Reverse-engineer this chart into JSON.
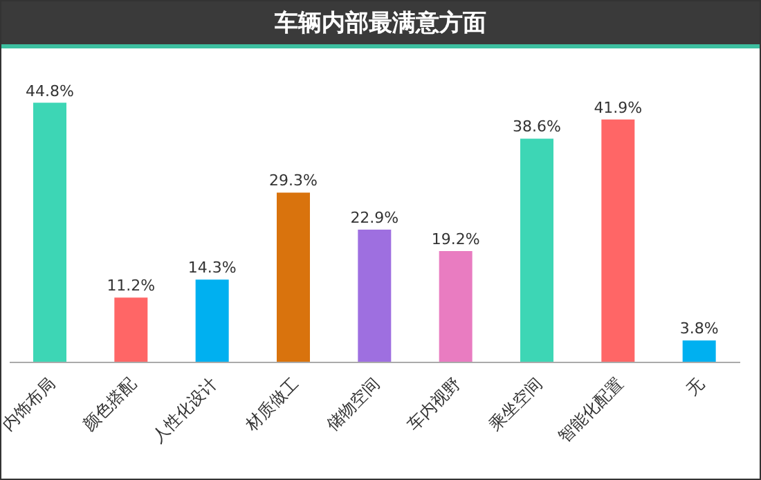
{
  "chart_data": {
    "type": "bar",
    "title": "车辆内部最满意方面",
    "categories": [
      "内饰布局",
      "颜色搭配",
      "人性化设计",
      "材质做工",
      "储物空间",
      "车内视野",
      "乘坐空间",
      "智能化配置",
      "无"
    ],
    "values": [
      44.8,
      11.2,
      14.3,
      29.3,
      22.9,
      19.2,
      38.6,
      41.9,
      3.8
    ],
    "colors": [
      "#3dd6b5",
      "#ff6666",
      "#00b0f0",
      "#d9730d",
      "#9e6fe0",
      "#e97cc1",
      "#3dd6b5",
      "#ff6666",
      "#00b0f0"
    ],
    "value_labels": [
      "44.8%",
      "11.2%",
      "14.3%",
      "29.3%",
      "22.9%",
      "19.2%",
      "38.6%",
      "41.9%",
      "3.8%"
    ],
    "grid": false,
    "legend": false
  }
}
